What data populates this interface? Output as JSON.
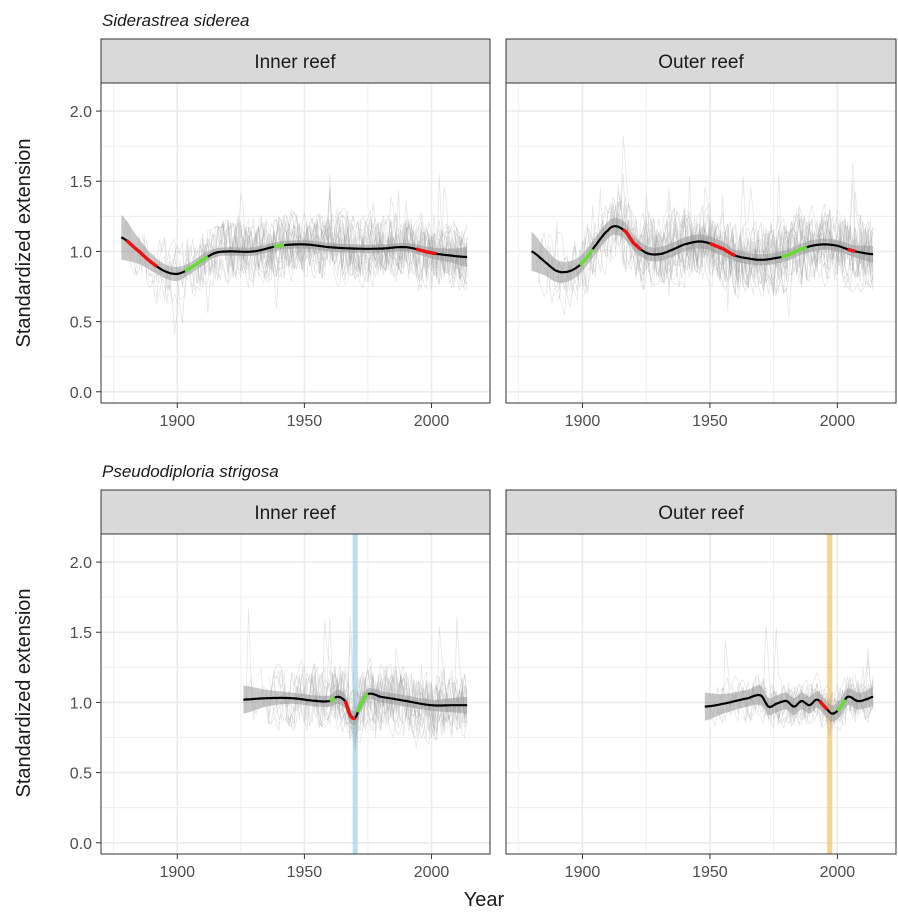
{
  "figure": {
    "xlabel": "Year",
    "ylabel": "Standardized extension",
    "legend": "none"
  },
  "colors": {
    "fit_line": "#000000",
    "ribbon": "#999999",
    "raw_series": "#999999",
    "growth_increase": "#66dd33",
    "growth_decrease": "#ee1111",
    "panel_border": "#333333",
    "grid": "#ebebeb",
    "strip_fill": "#d9d9d9",
    "inner_event_band": "#9dd3ea",
    "outer_event_band": "#f5c15c"
  },
  "chart_data": [
    {
      "type": "line",
      "species": "Siderastrea siderea",
      "panel": "Inner reef",
      "xlim": [
        1870,
        2023
      ],
      "ylim": [
        -0.08,
        2.2
      ],
      "x_ticks": [
        1900,
        1950,
        2000
      ],
      "y_ticks": [
        0.0,
        0.5,
        1.0,
        1.5,
        2.0
      ],
      "grid": true,
      "x_range": [
        1878,
        2014
      ],
      "fit": {
        "x": [
          1878,
          1885,
          1890,
          1895,
          1900,
          1905,
          1910,
          1915,
          1920,
          1930,
          1940,
          1950,
          1960,
          1970,
          1980,
          1990,
          2000,
          2008,
          2014
        ],
        "y": [
          1.1,
          1.0,
          0.92,
          0.86,
          0.84,
          0.88,
          0.94,
          0.99,
          1.0,
          1.0,
          1.04,
          1.05,
          1.03,
          1.02,
          1.02,
          1.03,
          0.99,
          0.97,
          0.96
        ],
        "se": [
          0.16,
          0.09,
          0.06,
          0.05,
          0.05,
          0.04,
          0.04,
          0.03,
          0.03,
          0.03,
          0.03,
          0.03,
          0.03,
          0.03,
          0.03,
          0.03,
          0.04,
          0.05,
          0.07
        ]
      },
      "segments": [
        {
          "trend": "decrease",
          "x": [
            1880,
            1892
          ]
        },
        {
          "trend": "increase",
          "x": [
            1903,
            1912
          ]
        },
        {
          "trend": "increase",
          "x": [
            1938,
            1942
          ]
        },
        {
          "trend": "decrease",
          "x": [
            1994,
            2002
          ]
        }
      ],
      "raw": {
        "count": 18,
        "amplitude": 0.2,
        "spike": 0.45
      },
      "event_band": null
    },
    {
      "type": "line",
      "species": "Siderastrea siderea",
      "panel": "Outer reef",
      "xlim": [
        1870,
        2023
      ],
      "ylim": [
        -0.08,
        2.2
      ],
      "x_ticks": [
        1900,
        1950,
        2000
      ],
      "y_ticks": [
        0.0,
        0.5,
        1.0,
        1.5,
        2.0
      ],
      "grid": true,
      "x_range": [
        1880,
        2014
      ],
      "fit": {
        "x": [
          1880,
          1885,
          1890,
          1895,
          1900,
          1905,
          1910,
          1913,
          1917,
          1920,
          1925,
          1930,
          1935,
          1940,
          1947,
          1955,
          1960,
          1965,
          1970,
          1975,
          1980,
          1985,
          1990,
          1995,
          2000,
          2005,
          2010,
          2014
        ],
        "y": [
          1.0,
          0.93,
          0.86,
          0.86,
          0.92,
          1.04,
          1.15,
          1.18,
          1.14,
          1.06,
          0.99,
          0.98,
          1.01,
          1.05,
          1.07,
          1.02,
          0.97,
          0.95,
          0.94,
          0.95,
          0.97,
          1.01,
          1.04,
          1.05,
          1.04,
          1.01,
          0.99,
          0.98
        ],
        "se": [
          0.14,
          0.1,
          0.08,
          0.07,
          0.06,
          0.06,
          0.06,
          0.06,
          0.06,
          0.05,
          0.05,
          0.05,
          0.05,
          0.05,
          0.05,
          0.05,
          0.04,
          0.04,
          0.04,
          0.04,
          0.04,
          0.04,
          0.04,
          0.04,
          0.04,
          0.04,
          0.05,
          0.06
        ]
      },
      "segments": [
        {
          "trend": "increase",
          "x": [
            1899,
            1904
          ]
        },
        {
          "trend": "decrease",
          "x": [
            1916,
            1923
          ]
        },
        {
          "trend": "decrease",
          "x": [
            1950,
            1960
          ]
        },
        {
          "trend": "increase",
          "x": [
            1978,
            1988
          ]
        },
        {
          "trend": "decrease",
          "x": [
            2004,
            2007
          ]
        }
      ],
      "raw": {
        "count": 18,
        "amplitude": 0.22,
        "spike": 0.5
      },
      "event_band": null
    },
    {
      "type": "line",
      "species": "Pseudodiploria strigosa",
      "panel": "Inner reef",
      "xlim": [
        1870,
        2023
      ],
      "ylim": [
        -0.08,
        2.2
      ],
      "x_ticks": [
        1900,
        1950,
        2000
      ],
      "y_ticks": [
        0.0,
        0.5,
        1.0,
        1.5,
        2.0
      ],
      "grid": true,
      "x_range": [
        1926,
        2014
      ],
      "fit": {
        "x": [
          1926,
          1935,
          1945,
          1955,
          1960,
          1963,
          1966,
          1968,
          1970,
          1972,
          1975,
          1980,
          1990,
          2000,
          2008,
          2014
        ],
        "y": [
          1.02,
          1.03,
          1.03,
          1.01,
          1.01,
          1.04,
          1.01,
          0.91,
          0.89,
          0.98,
          1.06,
          1.04,
          1.01,
          0.98,
          0.98,
          0.98
        ],
        "se": [
          0.1,
          0.06,
          0.04,
          0.04,
          0.04,
          0.05,
          0.05,
          0.05,
          0.05,
          0.05,
          0.04,
          0.04,
          0.04,
          0.04,
          0.05,
          0.06
        ]
      },
      "segments": [
        {
          "trend": "increase",
          "x": [
            1960,
            1962
          ]
        },
        {
          "trend": "decrease",
          "x": [
            1966,
            1970
          ]
        },
        {
          "trend": "increase",
          "x": [
            1971,
            1975
          ]
        }
      ],
      "raw": {
        "count": 16,
        "amplitude": 0.2,
        "spike": 0.6
      },
      "event_band": {
        "x": [
          1969,
          1971
        ],
        "color_key": "inner_event_band"
      }
    },
    {
      "type": "line",
      "species": "Pseudodiploria strigosa",
      "panel": "Outer reef",
      "xlim": [
        1870,
        2023
      ],
      "ylim": [
        -0.08,
        2.2
      ],
      "x_ticks": [
        1900,
        1950,
        2000
      ],
      "y_ticks": [
        0.0,
        0.5,
        1.0,
        1.5,
        2.0
      ],
      "grid": true,
      "x_range": [
        1948,
        2014
      ],
      "fit": {
        "x": [
          1948,
          1955,
          1965,
          1970,
          1973,
          1976,
          1980,
          1983,
          1986,
          1989,
          1992,
          1995,
          1998,
          2001,
          2004,
          2008,
          2011,
          2014
        ],
        "y": [
          0.97,
          0.99,
          1.03,
          1.05,
          0.97,
          0.99,
          1.01,
          0.97,
          1.01,
          0.98,
          1.02,
          0.97,
          0.92,
          0.96,
          1.04,
          1.01,
          1.02,
          1.04
        ],
        "se": [
          0.1,
          0.07,
          0.06,
          0.07,
          0.06,
          0.06,
          0.06,
          0.06,
          0.06,
          0.06,
          0.06,
          0.06,
          0.06,
          0.06,
          0.06,
          0.06,
          0.06,
          0.07
        ]
      },
      "segments": [
        {
          "trend": "decrease",
          "x": [
            1993,
            1996
          ]
        },
        {
          "trend": "increase",
          "x": [
            2000,
            2003
          ]
        }
      ],
      "raw": {
        "count": 12,
        "amplitude": 0.14,
        "spike": 0.45
      },
      "event_band": {
        "x": [
          1996,
          1998
        ],
        "color_key": "outer_event_band"
      }
    }
  ]
}
